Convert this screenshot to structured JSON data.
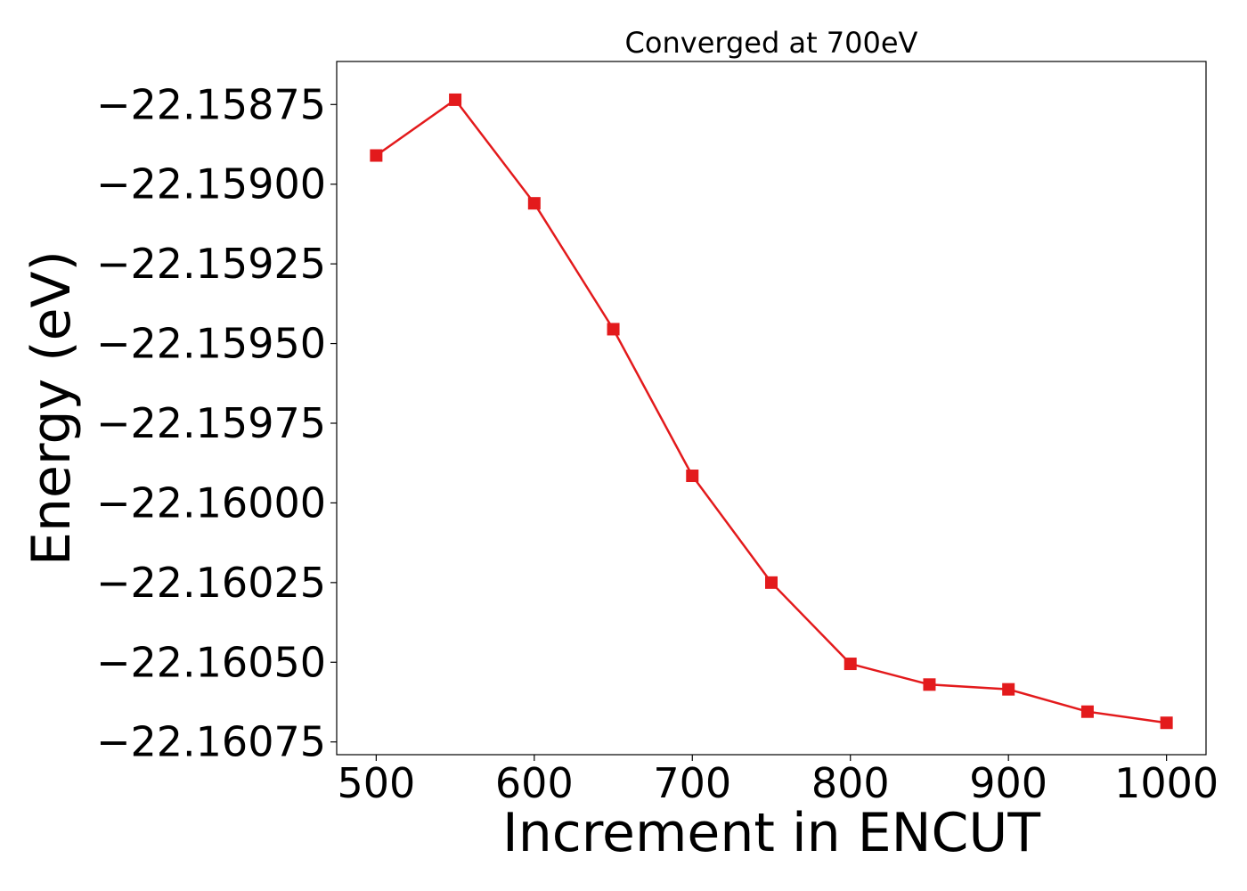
{
  "chart_data": {
    "type": "line",
    "title": "Converged at 700eV",
    "xlabel": "Increment in ENCUT",
    "ylabel": "Energy (eV)",
    "xlim": [
      475,
      1025
    ],
    "ylim": [
      -22.16079,
      -22.158615
    ],
    "x_ticks": [
      500,
      600,
      700,
      800,
      900,
      1000
    ],
    "x_tick_labels": [
      "500",
      "600",
      "700",
      "800",
      "900",
      "1000"
    ],
    "y_ticks": [
      -22.15875,
      -22.159,
      -22.15925,
      -22.1595,
      -22.15975,
      -22.16,
      -22.16025,
      -22.1605,
      -22.16075
    ],
    "y_tick_labels": [
      "−22.15875",
      "−22.15900",
      "−22.15925",
      "−22.15950",
      "−22.15975",
      "−22.16000",
      "−22.16025",
      "−22.16050",
      "−22.16075"
    ],
    "grid": false,
    "series": [
      {
        "color": "#e31a1c",
        "marker": "square",
        "x": [
          500,
          550,
          600,
          650,
          700,
          750,
          800,
          850,
          900,
          950,
          1000
        ],
        "y": [
          -22.15891,
          -22.158735,
          -22.15906,
          -22.159455,
          -22.159915,
          -22.16025,
          -22.160505,
          -22.16057,
          -22.160585,
          -22.160655,
          -22.16069
        ]
      }
    ]
  }
}
